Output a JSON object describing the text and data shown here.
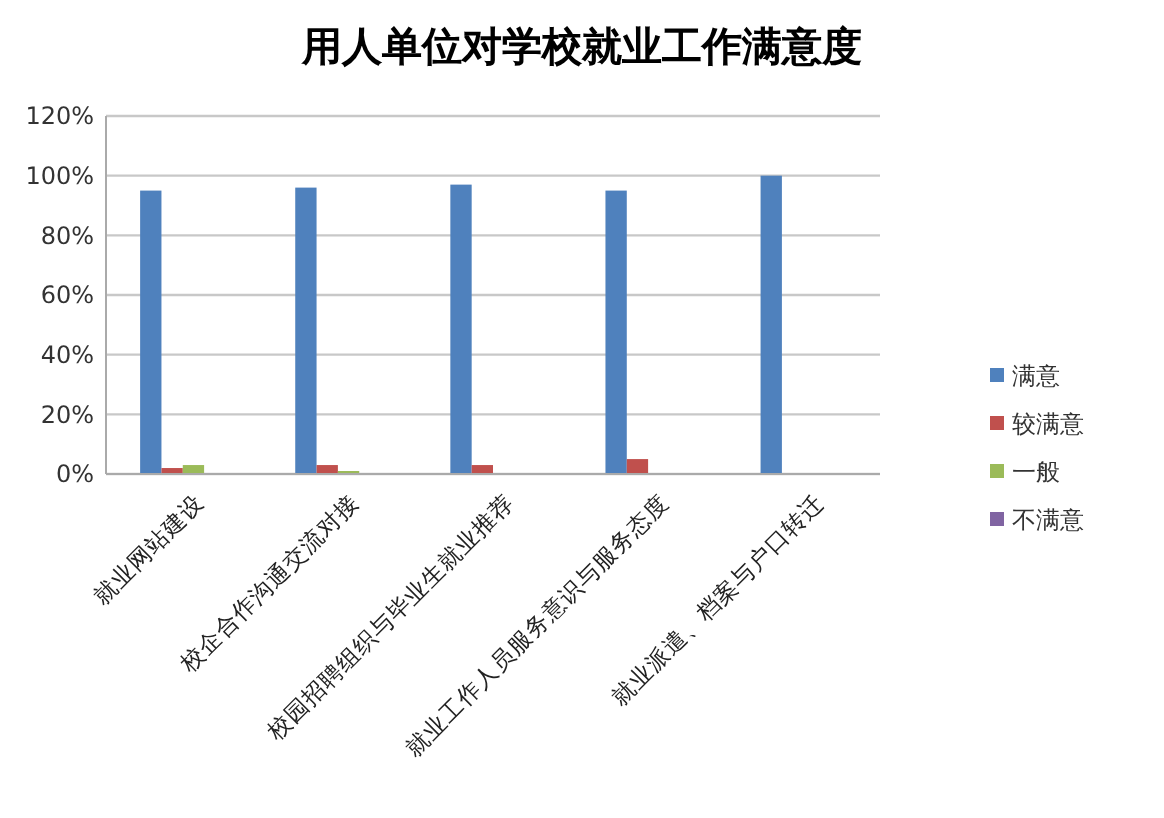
{
  "chart_data": {
    "type": "bar",
    "title": "用人单位对学校就业工作满意度",
    "categories": [
      "就业网站建设",
      "校企合作沟通交流对接",
      "校园招聘组织与毕业生就业推荐",
      "就业工作人员服务意识与服务态度",
      "就业派遣、档案与户口转迁"
    ],
    "series": [
      {
        "name": "满意",
        "color": "#4f81bd",
        "values": [
          95,
          96,
          97,
          95,
          100
        ]
      },
      {
        "name": "较满意",
        "color": "#c0504d",
        "values": [
          2,
          3,
          3,
          5,
          0
        ]
      },
      {
        "name": "一般",
        "color": "#9bbb59",
        "values": [
          3,
          1,
          0,
          0,
          0
        ]
      },
      {
        "name": "不满意",
        "color": "#8064a2",
        "values": [
          0,
          0,
          0,
          0,
          0
        ]
      }
    ],
    "ylim": [
      0,
      120
    ],
    "yticks": [
      {
        "value": 0,
        "label": "0%"
      },
      {
        "value": 20,
        "label": "20%"
      },
      {
        "value": 40,
        "label": "40%"
      },
      {
        "value": 60,
        "label": "60%"
      },
      {
        "value": 80,
        "label": "80%"
      },
      {
        "value": 100,
        "label": "100%"
      },
      {
        "value": 120,
        "label": "120%"
      }
    ],
    "grid": "y",
    "legend": "right"
  }
}
